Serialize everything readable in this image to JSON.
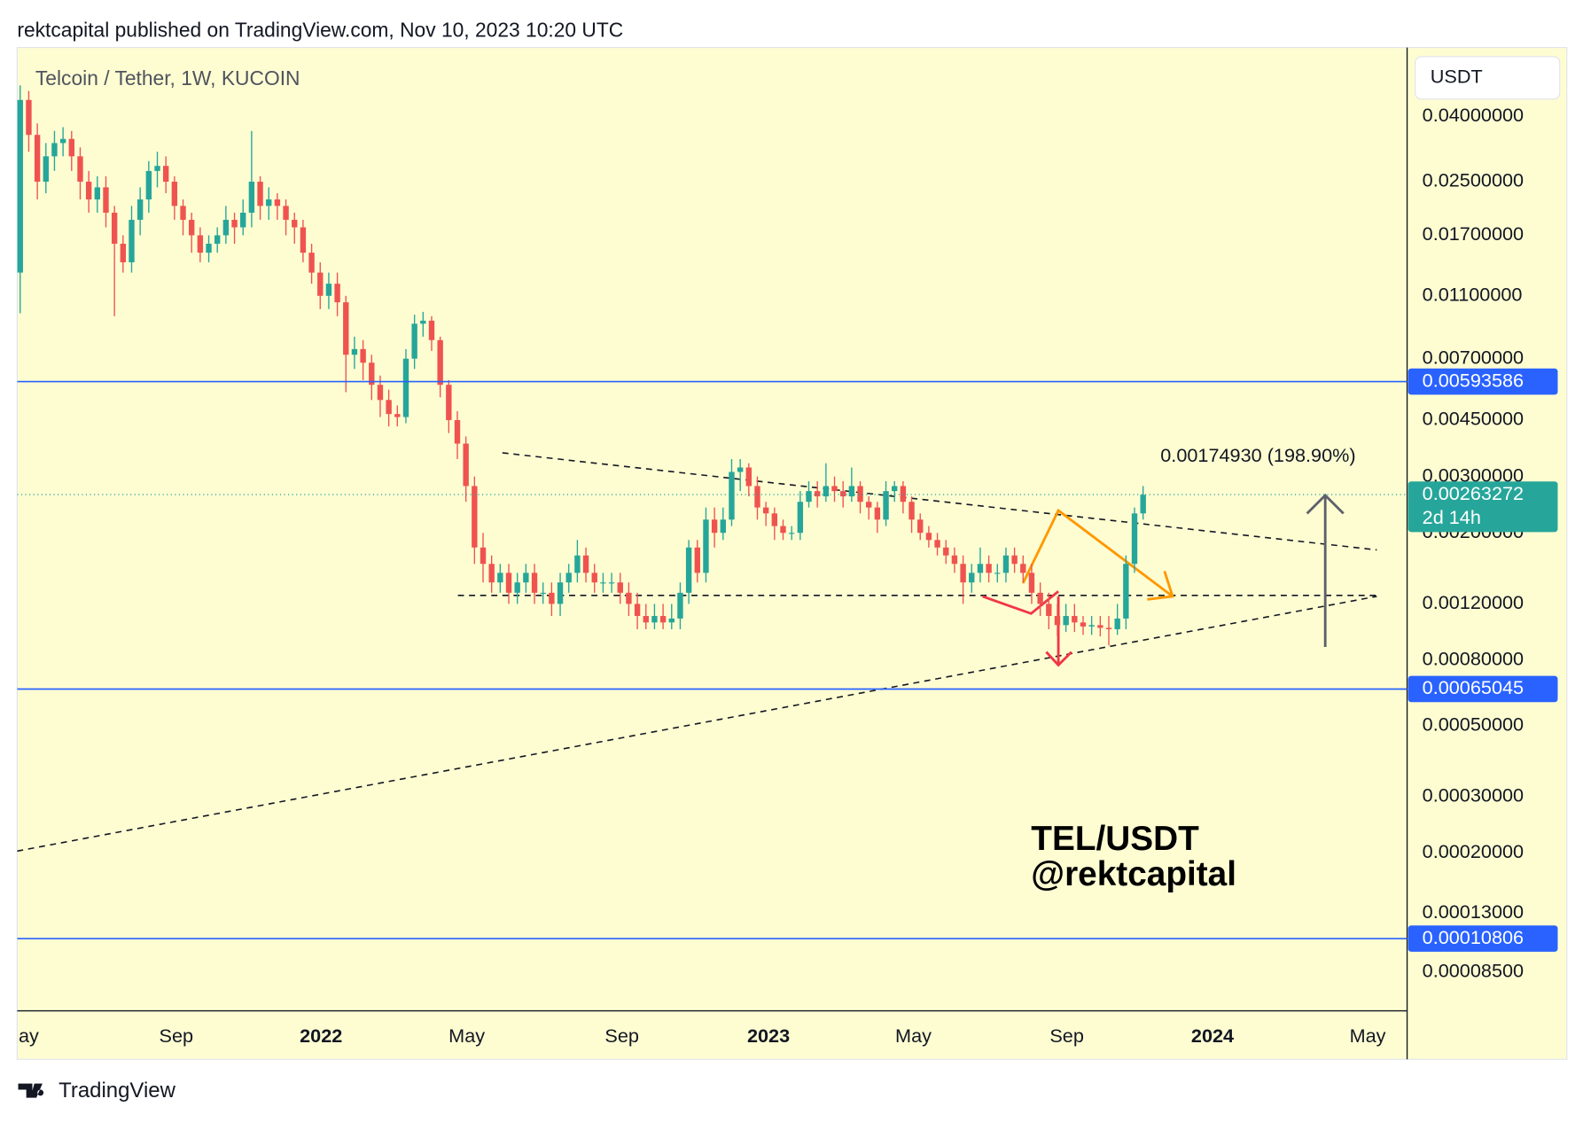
{
  "header": {
    "published": "rektcapital published on TradingView.com, Nov 10, 2023 10:20 UTC",
    "logo": "TradingView"
  },
  "chart_data": {
    "type": "candlestick",
    "title": "Telcoin / Tether, 1W, KUCOIN",
    "currency": "USDT",
    "up_color": "#26a69a",
    "down_color": "#ef5350",
    "log_scale": true,
    "open": [
      0.013,
      0.045,
      0.035,
      0.025,
      0.03,
      0.033,
      0.034,
      0.03,
      0.025,
      0.022,
      0.024,
      0.02,
      0.016,
      0.014,
      0.019,
      0.022,
      0.027,
      0.028,
      0.025,
      0.021,
      0.019,
      0.017,
      0.015,
      0.016,
      0.017,
      0.019,
      0.018,
      0.02,
      0.025,
      0.021,
      0.022,
      0.021,
      0.019,
      0.018,
      0.015,
      0.013,
      0.011,
      0.012,
      0.0105,
      0.0072,
      0.0075,
      0.0068,
      0.0058,
      0.0052,
      0.0047,
      0.0046,
      0.007,
      0.009,
      0.0092,
      0.008,
      0.0058,
      0.0045,
      0.0038,
      0.0028,
      0.0018,
      0.0016,
      0.0014,
      0.0015,
      0.0013,
      0.0014,
      0.0015,
      0.0013,
      0.0013,
      0.0012,
      0.0014,
      0.0015,
      0.0017,
      0.0015,
      0.0014,
      0.0014,
      0.0014,
      0.0013,
      0.0012,
      0.0011,
      0.00105,
      0.0011,
      0.00105,
      0.00108,
      0.0013,
      0.0018,
      0.0015,
      0.0022,
      0.002,
      0.0022,
      0.0031,
      0.0032,
      0.0028,
      0.0024,
      0.0023,
      0.0021,
      0.002,
      0.002,
      0.0025,
      0.0027,
      0.0026,
      0.0028,
      0.0027,
      0.0026,
      0.0028,
      0.0025,
      0.0024,
      0.0022,
      0.0027,
      0.0028,
      0.0025,
      0.0022,
      0.002,
      0.0019,
      0.0018,
      0.0017,
      0.0016,
      0.0014,
      0.0015,
      0.0016,
      0.0015,
      0.0015,
      0.0017,
      0.0016,
      0.0015,
      0.0013,
      0.0012,
      0.0011,
      0.00103,
      0.0011,
      0.00105,
      0.00102,
      0.00103,
      0.00101,
      0.001,
      0.00108,
      0.0016,
      0.0023
    ],
    "high": [
      0.05,
      0.048,
      0.038,
      0.033,
      0.036,
      0.037,
      0.036,
      0.032,
      0.027,
      0.026,
      0.026,
      0.021,
      0.017,
      0.021,
      0.024,
      0.029,
      0.031,
      0.03,
      0.026,
      0.022,
      0.02,
      0.018,
      0.017,
      0.018,
      0.021,
      0.02,
      0.022,
      0.036,
      0.026,
      0.024,
      0.023,
      0.022,
      0.02,
      0.019,
      0.016,
      0.014,
      0.013,
      0.013,
      0.011,
      0.0082,
      0.008,
      0.0072,
      0.0062,
      0.0056,
      0.005,
      0.0075,
      0.0096,
      0.0098,
      0.0095,
      0.0082,
      0.006,
      0.0048,
      0.004,
      0.003,
      0.002,
      0.0017,
      0.0016,
      0.0016,
      0.0015,
      0.0016,
      0.0016,
      0.0014,
      0.0014,
      0.0015,
      0.0016,
      0.0019,
      0.0018,
      0.0016,
      0.0015,
      0.0015,
      0.0015,
      0.0014,
      0.0013,
      0.0012,
      0.0012,
      0.0012,
      0.0012,
      0.0014,
      0.0019,
      0.0019,
      0.0024,
      0.0024,
      0.0024,
      0.0034,
      0.0034,
      0.0033,
      0.003,
      0.0025,
      0.0024,
      0.0022,
      0.0021,
      0.0027,
      0.0029,
      0.0029,
      0.0033,
      0.003,
      0.0029,
      0.0032,
      0.0029,
      0.0026,
      0.0025,
      0.0029,
      0.0029,
      0.0029,
      0.0026,
      0.0023,
      0.0021,
      0.002,
      0.0019,
      0.0018,
      0.0017,
      0.0016,
      0.0018,
      0.0017,
      0.0016,
      0.0018,
      0.0018,
      0.0017,
      0.0016,
      0.0014,
      0.0013,
      0.0012,
      0.0012,
      0.0012,
      0.0011,
      0.0011,
      0.0011,
      0.0011,
      0.0012,
      0.0017,
      0.0024,
      0.0028
    ],
    "low": [
      0.0097,
      0.031,
      0.022,
      0.023,
      0.027,
      0.03,
      0.027,
      0.022,
      0.02,
      0.02,
      0.018,
      0.0095,
      0.013,
      0.013,
      0.017,
      0.02,
      0.024,
      0.023,
      0.019,
      0.017,
      0.015,
      0.014,
      0.014,
      0.015,
      0.016,
      0.016,
      0.017,
      0.018,
      0.019,
      0.019,
      0.019,
      0.017,
      0.016,
      0.014,
      0.012,
      0.01,
      0.01,
      0.0095,
      0.0055,
      0.0065,
      0.006,
      0.0052,
      0.0046,
      0.0043,
      0.0043,
      0.0044,
      0.0065,
      0.0082,
      0.0074,
      0.0053,
      0.0041,
      0.0034,
      0.0025,
      0.0016,
      0.0014,
      0.0013,
      0.0013,
      0.0012,
      0.0012,
      0.0013,
      0.0012,
      0.0012,
      0.0011,
      0.0011,
      0.0013,
      0.0014,
      0.0014,
      0.0013,
      0.0013,
      0.0013,
      0.0012,
      0.0011,
      0.001,
      0.001,
      0.001,
      0.001,
      0.001,
      0.001,
      0.0012,
      0.0014,
      0.0014,
      0.0018,
      0.0019,
      0.0021,
      0.0027,
      0.0026,
      0.0022,
      0.0021,
      0.0019,
      0.0019,
      0.0019,
      0.0019,
      0.0024,
      0.0024,
      0.0025,
      0.0025,
      0.0024,
      0.0025,
      0.0023,
      0.0022,
      0.002,
      0.0021,
      0.0025,
      0.0023,
      0.002,
      0.0019,
      0.0018,
      0.0017,
      0.0016,
      0.0015,
      0.0012,
      0.0013,
      0.0014,
      0.0014,
      0.0014,
      0.0014,
      0.0015,
      0.0014,
      0.0012,
      0.0011,
      0.001,
      0.00095,
      0.00098,
      0.00098,
      0.00096,
      0.00096,
      0.00095,
      0.00089,
      0.00096,
      0.001,
      0.0015,
      0.0022
    ],
    "close": [
      0.045,
      0.035,
      0.025,
      0.03,
      0.033,
      0.034,
      0.03,
      0.025,
      0.022,
      0.024,
      0.02,
      0.016,
      0.014,
      0.019,
      0.022,
      0.027,
      0.028,
      0.025,
      0.021,
      0.019,
      0.017,
      0.015,
      0.016,
      0.017,
      0.019,
      0.018,
      0.02,
      0.025,
      0.021,
      0.022,
      0.021,
      0.019,
      0.018,
      0.015,
      0.013,
      0.011,
      0.012,
      0.0105,
      0.0072,
      0.0075,
      0.0068,
      0.0058,
      0.0052,
      0.0047,
      0.0046,
      0.007,
      0.009,
      0.0092,
      0.008,
      0.0058,
      0.0045,
      0.0038,
      0.0028,
      0.0018,
      0.0016,
      0.0014,
      0.0015,
      0.0013,
      0.0014,
      0.0015,
      0.0013,
      0.0013,
      0.0012,
      0.0014,
      0.0015,
      0.0017,
      0.0015,
      0.0014,
      0.0014,
      0.0014,
      0.0013,
      0.0012,
      0.0011,
      0.00105,
      0.0011,
      0.00105,
      0.00108,
      0.0013,
      0.0018,
      0.0015,
      0.0022,
      0.002,
      0.0022,
      0.0031,
      0.0032,
      0.0028,
      0.0024,
      0.0023,
      0.0021,
      0.002,
      0.002,
      0.0025,
      0.0027,
      0.0026,
      0.0028,
      0.0027,
      0.0026,
      0.0028,
      0.0025,
      0.0024,
      0.0022,
      0.0027,
      0.0028,
      0.0025,
      0.0022,
      0.002,
      0.0019,
      0.0018,
      0.0017,
      0.0016,
      0.0014,
      0.0015,
      0.0016,
      0.0015,
      0.0015,
      0.0017,
      0.0016,
      0.0015,
      0.0013,
      0.0012,
      0.0011,
      0.00103,
      0.0011,
      0.00105,
      0.00102,
      0.00103,
      0.00101,
      0.001,
      0.00108,
      0.0016,
      0.0023,
      0.00263
    ],
    "xlim": [
      -0.35,
      161.8
    ],
    "xticks": [
      {
        "value": 1,
        "label": "ay"
      },
      {
        "value": 18.2,
        "label": "Sep"
      },
      {
        "value": 35.1,
        "label": "2022"
      },
      {
        "value": 52.1,
        "label": "May"
      },
      {
        "value": 70.2,
        "label": "Sep"
      },
      {
        "value": 87.3,
        "label": "2023"
      },
      {
        "value": 104.2,
        "label": "May"
      },
      {
        "value": 122.1,
        "label": "Sep"
      },
      {
        "value": 139.1,
        "label": "2024"
      },
      {
        "value": 157.2,
        "label": "May"
      }
    ],
    "ylim": [
      6.43e-05,
      0.0656
    ],
    "yticks": [
      {
        "value": 0.04,
        "label": "0.04000000"
      },
      {
        "value": 0.025,
        "label": "0.02500000"
      },
      {
        "value": 0.017,
        "label": "0.01700000"
      },
      {
        "value": 0.011,
        "label": "0.01100000"
      },
      {
        "value": 0.007,
        "label": "0.00700000"
      },
      {
        "value": 0.0045,
        "label": "0.00450000"
      },
      {
        "value": 0.003,
        "label": "0.00300000"
      },
      {
        "value": 0.002,
        "label": "0.00200000"
      },
      {
        "value": 0.0012,
        "label": "0.00120000"
      },
      {
        "value": 0.0008,
        "label": "0.00080000"
      },
      {
        "value": 0.0005,
        "label": "0.00050000"
      },
      {
        "value": 0.0003,
        "label": "0.00030000"
      },
      {
        "value": 0.0002,
        "label": "0.00020000"
      },
      {
        "value": 0.00013,
        "label": "0.00013000"
      },
      {
        "value": 8.5e-05,
        "label": "0.00008500"
      }
    ],
    "levels": [
      {
        "value": 0.00593586,
        "color": "#2962ff"
      },
      {
        "value": 0.00065045,
        "color": "#2962ff"
      },
      {
        "value": 0.00010806,
        "color": "#2962ff"
      }
    ],
    "last_price": {
      "value": 0.00263272,
      "countdown": "2d 14h",
      "color": "#26a69a"
    },
    "measure_label": "0.00174930 (198.90%)",
    "watermark": [
      "TEL/USDT",
      "@rektcapital"
    ]
  }
}
